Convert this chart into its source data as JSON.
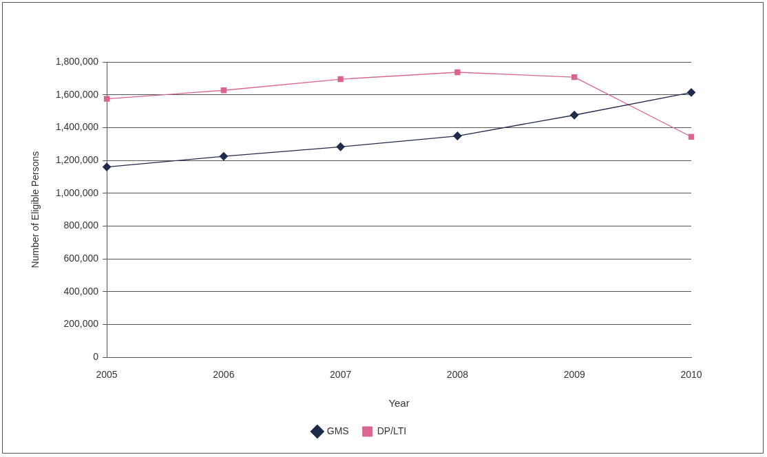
{
  "chart_data": {
    "type": "line",
    "xlabel": "Year",
    "ylabel": "Number of Eligible Persons",
    "categories": [
      "2005",
      "2006",
      "2007",
      "2008",
      "2009",
      "2010"
    ],
    "series": [
      {
        "name": "GMS",
        "color": "#1f2b4d",
        "marker": "diamond",
        "values": [
          1160000,
          1225000,
          1283000,
          1349000,
          1476000,
          1614000
        ]
      },
      {
        "name": "DP/LTI",
        "color": "#d9668f",
        "marker": "square",
        "values": [
          1575000,
          1627000,
          1695000,
          1737000,
          1707000,
          1344000
        ]
      }
    ],
    "ylim": [
      0,
      1800000
    ],
    "yticks": [
      {
        "value": 0,
        "label": "0"
      },
      {
        "value": 200000,
        "label": "200,000"
      },
      {
        "value": 400000,
        "label": "400,000"
      },
      {
        "value": 600000,
        "label": "600,000"
      },
      {
        "value": 800000,
        "label": "800,000"
      },
      {
        "value": 1000000,
        "label": "1,000,000"
      },
      {
        "value": 1200000,
        "label": "1,200,000"
      },
      {
        "value": 1400000,
        "label": "1,400,000"
      },
      {
        "value": 1600000,
        "label": "1,600,000"
      },
      {
        "value": 1800000,
        "label": "1,800,000"
      }
    ],
    "grid": "y",
    "legend": "bottom",
    "line_style": "solid"
  }
}
